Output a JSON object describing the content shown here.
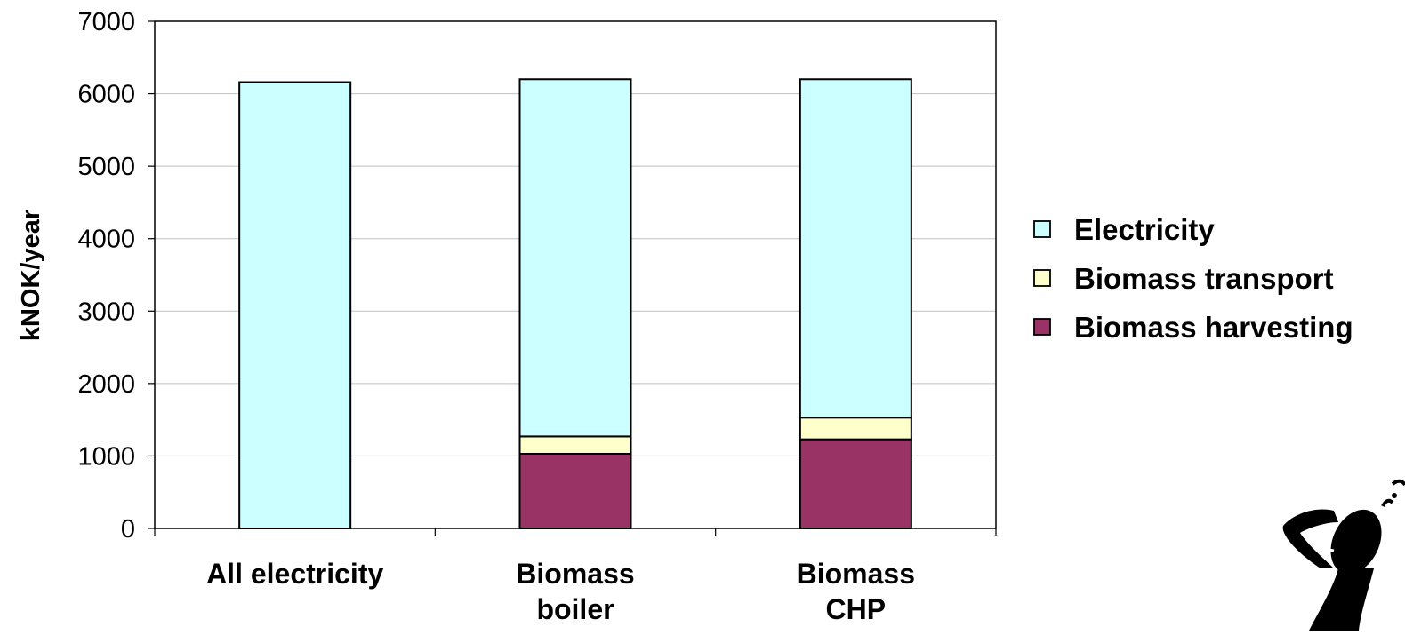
{
  "chart_data": {
    "type": "bar",
    "stacked": true,
    "title": "",
    "xlabel": "",
    "ylabel": "kNOK/year",
    "ylim": [
      0,
      7000
    ],
    "yticks": [
      "0",
      "1000",
      "2000",
      "3000",
      "4000",
      "5000",
      "6000",
      "7000"
    ],
    "grid": true,
    "legend_position": "right",
    "categories": [
      [
        "All electricity"
      ],
      [
        "Biomass",
        "boiler"
      ],
      [
        "Biomass",
        "CHP"
      ]
    ],
    "series": [
      {
        "name": "Biomass harvesting",
        "color": "#993366",
        "values": [
          0,
          1030,
          1230
        ]
      },
      {
        "name": "Biomass transport",
        "color": "#ffffcc",
        "values": [
          0,
          240,
          300
        ]
      },
      {
        "name": "Electricity",
        "color": "#ccffff",
        "values": [
          6160,
          4930,
          4670
        ]
      }
    ],
    "legend_order": [
      "Electricity",
      "Biomass transport",
      "Biomass harvesting"
    ]
  },
  "decoration": {
    "icon": "thinking-person-icon"
  }
}
